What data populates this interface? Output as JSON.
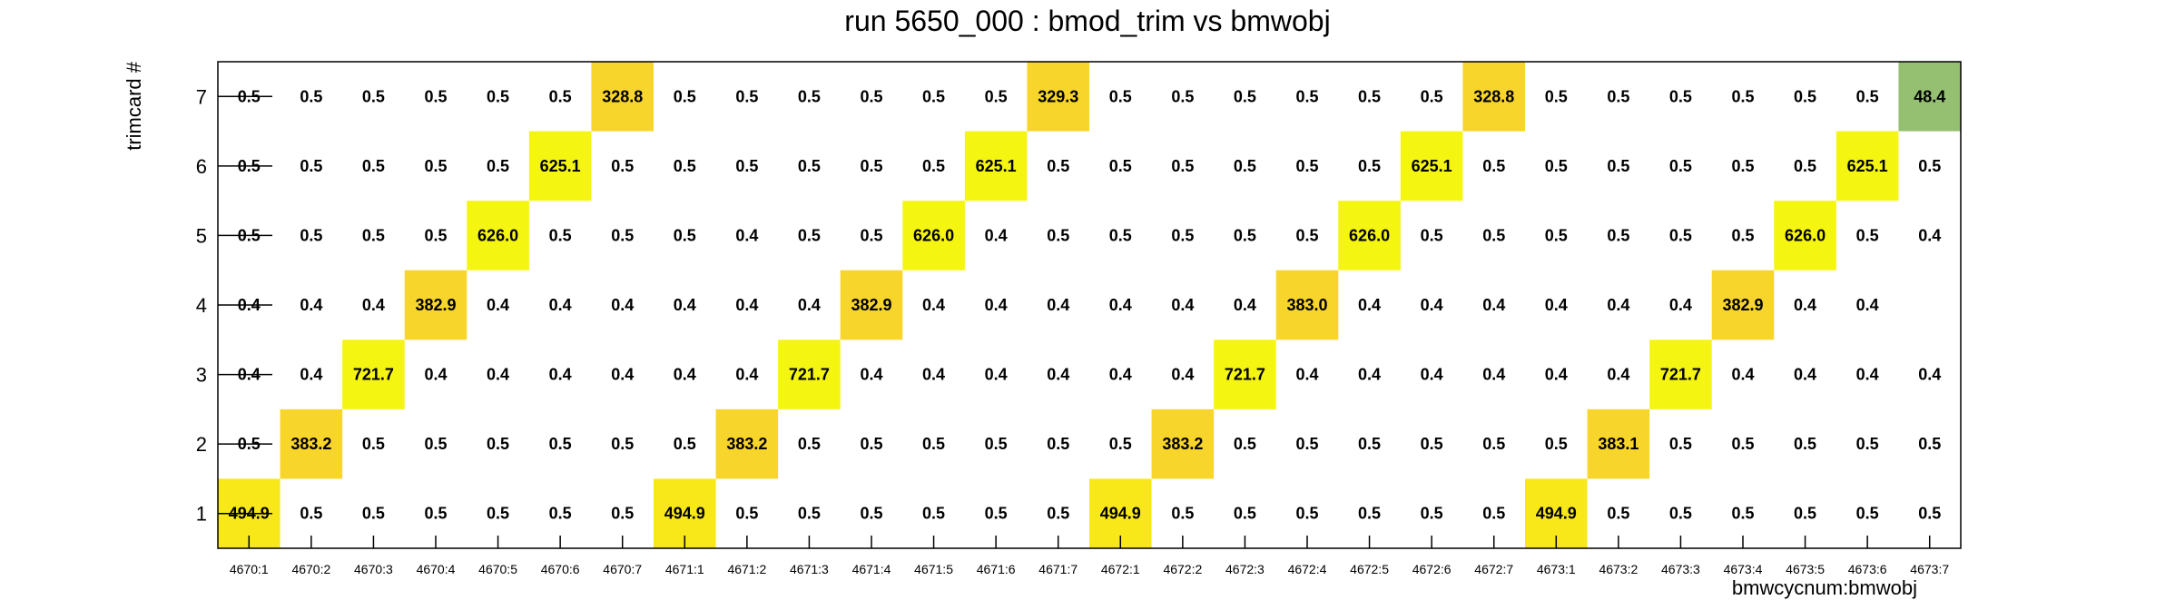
{
  "chart_data": {
    "type": "heatmap",
    "title": "run 5650_000 : bmod_trim vs bmwobj",
    "xlabel": "bmwcycnum:bmwobj",
    "ylabel": "trimcard #",
    "x_categories": [
      "4670:1",
      "4670:2",
      "4670:3",
      "4670:4",
      "4670:5",
      "4670:6",
      "4670:7",
      "4671:1",
      "4671:2",
      "4671:3",
      "4671:4",
      "4671:5",
      "4671:6",
      "4671:7",
      "4672:1",
      "4672:2",
      "4672:3",
      "4672:4",
      "4672:5",
      "4672:6",
      "4672:7",
      "4673:1",
      "4673:2",
      "4673:3",
      "4673:4",
      "4673:5",
      "4673:6",
      "4673:7"
    ],
    "y_categories": [
      "1",
      "2",
      "3",
      "4",
      "5",
      "6",
      "7"
    ],
    "grid": false,
    "cell_text_format": "one decimal",
    "colors": {
      "high": "#f5f512",
      "mid_high": "#f8e81a",
      "mid": "#f8d52a",
      "low": "#96c071",
      "frame": "#000000"
    },
    "cells": [
      {
        "x": "4670:1",
        "y": "7",
        "v": 0.5
      },
      {
        "x": "4670:2",
        "y": "7",
        "v": 0.5
      },
      {
        "x": "4670:3",
        "y": "7",
        "v": 0.5
      },
      {
        "x": "4670:4",
        "y": "7",
        "v": 0.5
      },
      {
        "x": "4670:5",
        "y": "7",
        "v": 0.5
      },
      {
        "x": "4670:6",
        "y": "7",
        "v": 0.5
      },
      {
        "x": "4670:7",
        "y": "7",
        "v": 328.8
      },
      {
        "x": "4671:1",
        "y": "7",
        "v": 0.5
      },
      {
        "x": "4671:2",
        "y": "7",
        "v": 0.5
      },
      {
        "x": "4671:3",
        "y": "7",
        "v": 0.5
      },
      {
        "x": "4671:4",
        "y": "7",
        "v": 0.5
      },
      {
        "x": "4671:5",
        "y": "7",
        "v": 0.5
      },
      {
        "x": "4671:6",
        "y": "7",
        "v": 0.5
      },
      {
        "x": "4671:7",
        "y": "7",
        "v": 329.3
      },
      {
        "x": "4672:1",
        "y": "7",
        "v": 0.5
      },
      {
        "x": "4672:2",
        "y": "7",
        "v": 0.5
      },
      {
        "x": "4672:3",
        "y": "7",
        "v": 0.5
      },
      {
        "x": "4672:4",
        "y": "7",
        "v": 0.5
      },
      {
        "x": "4672:5",
        "y": "7",
        "v": 0.5
      },
      {
        "x": "4672:6",
        "y": "7",
        "v": 0.5
      },
      {
        "x": "4672:7",
        "y": "7",
        "v": 328.8
      },
      {
        "x": "4673:1",
        "y": "7",
        "v": 0.5
      },
      {
        "x": "4673:2",
        "y": "7",
        "v": 0.5
      },
      {
        "x": "4673:3",
        "y": "7",
        "v": 0.5
      },
      {
        "x": "4673:4",
        "y": "7",
        "v": 0.5
      },
      {
        "x": "4673:5",
        "y": "7",
        "v": 0.5
      },
      {
        "x": "4673:6",
        "y": "7",
        "v": 0.5
      },
      {
        "x": "4673:7",
        "y": "7",
        "v": 48.4
      },
      {
        "x": "4670:1",
        "y": "6",
        "v": 0.5
      },
      {
        "x": "4670:2",
        "y": "6",
        "v": 0.5
      },
      {
        "x": "4670:3",
        "y": "6",
        "v": 0.5
      },
      {
        "x": "4670:4",
        "y": "6",
        "v": 0.5
      },
      {
        "x": "4670:5",
        "y": "6",
        "v": 0.5
      },
      {
        "x": "4670:6",
        "y": "6",
        "v": 625.1
      },
      {
        "x": "4670:7",
        "y": "6",
        "v": 0.5
      },
      {
        "x": "4671:1",
        "y": "6",
        "v": 0.5
      },
      {
        "x": "4671:2",
        "y": "6",
        "v": 0.5
      },
      {
        "x": "4671:3",
        "y": "6",
        "v": 0.5
      },
      {
        "x": "4671:4",
        "y": "6",
        "v": 0.5
      },
      {
        "x": "4671:5",
        "y": "6",
        "v": 0.5
      },
      {
        "x": "4671:6",
        "y": "6",
        "v": 625.1
      },
      {
        "x": "4671:7",
        "y": "6",
        "v": 0.5
      },
      {
        "x": "4672:1",
        "y": "6",
        "v": 0.5
      },
      {
        "x": "4672:2",
        "y": "6",
        "v": 0.5
      },
      {
        "x": "4672:3",
        "y": "6",
        "v": 0.5
      },
      {
        "x": "4672:4",
        "y": "6",
        "v": 0.5
      },
      {
        "x": "4672:5",
        "y": "6",
        "v": 0.5
      },
      {
        "x": "4672:6",
        "y": "6",
        "v": 625.1
      },
      {
        "x": "4672:7",
        "y": "6",
        "v": 0.5
      },
      {
        "x": "4673:1",
        "y": "6",
        "v": 0.5
      },
      {
        "x": "4673:2",
        "y": "6",
        "v": 0.5
      },
      {
        "x": "4673:3",
        "y": "6",
        "v": 0.5
      },
      {
        "x": "4673:4",
        "y": "6",
        "v": 0.5
      },
      {
        "x": "4673:5",
        "y": "6",
        "v": 0.5
      },
      {
        "x": "4673:6",
        "y": "6",
        "v": 625.1
      },
      {
        "x": "4673:7",
        "y": "6",
        "v": 0.5
      },
      {
        "x": "4670:1",
        "y": "5",
        "v": 0.5
      },
      {
        "x": "4670:2",
        "y": "5",
        "v": 0.5
      },
      {
        "x": "4670:3",
        "y": "5",
        "v": 0.5
      },
      {
        "x": "4670:4",
        "y": "5",
        "v": 0.5
      },
      {
        "x": "4670:5",
        "y": "5",
        "v": 626.0
      },
      {
        "x": "4670:6",
        "y": "5",
        "v": 0.5
      },
      {
        "x": "4670:7",
        "y": "5",
        "v": 0.5
      },
      {
        "x": "4671:1",
        "y": "5",
        "v": 0.5
      },
      {
        "x": "4671:2",
        "y": "5",
        "v": 0.4
      },
      {
        "x": "4671:3",
        "y": "5",
        "v": 0.5
      },
      {
        "x": "4671:4",
        "y": "5",
        "v": 0.5
      },
      {
        "x": "4671:5",
        "y": "5",
        "v": 626.0
      },
      {
        "x": "4671:6",
        "y": "5",
        "v": 0.4
      },
      {
        "x": "4671:7",
        "y": "5",
        "v": 0.5
      },
      {
        "x": "4672:1",
        "y": "5",
        "v": 0.5
      },
      {
        "x": "4672:2",
        "y": "5",
        "v": 0.5
      },
      {
        "x": "4672:3",
        "y": "5",
        "v": 0.5
      },
      {
        "x": "4672:4",
        "y": "5",
        "v": 0.5
      },
      {
        "x": "4672:5",
        "y": "5",
        "v": 626.0
      },
      {
        "x": "4672:6",
        "y": "5",
        "v": 0.5
      },
      {
        "x": "4672:7",
        "y": "5",
        "v": 0.5
      },
      {
        "x": "4673:1",
        "y": "5",
        "v": 0.5
      },
      {
        "x": "4673:2",
        "y": "5",
        "v": 0.5
      },
      {
        "x": "4673:3",
        "y": "5",
        "v": 0.5
      },
      {
        "x": "4673:4",
        "y": "5",
        "v": 0.5
      },
      {
        "x": "4673:5",
        "y": "5",
        "v": 626.0
      },
      {
        "x": "4673:6",
        "y": "5",
        "v": 0.5
      },
      {
        "x": "4673:7",
        "y": "5",
        "v": 0.4
      },
      {
        "x": "4670:1",
        "y": "4",
        "v": 0.4
      },
      {
        "x": "4670:2",
        "y": "4",
        "v": 0.4
      },
      {
        "x": "4670:3",
        "y": "4",
        "v": 0.4
      },
      {
        "x": "4670:4",
        "y": "4",
        "v": 382.9
      },
      {
        "x": "4670:5",
        "y": "4",
        "v": 0.4
      },
      {
        "x": "4670:6",
        "y": "4",
        "v": 0.4
      },
      {
        "x": "4670:7",
        "y": "4",
        "v": 0.4
      },
      {
        "x": "4671:1",
        "y": "4",
        "v": 0.4
      },
      {
        "x": "4671:2",
        "y": "4",
        "v": 0.4
      },
      {
        "x": "4671:3",
        "y": "4",
        "v": 0.4
      },
      {
        "x": "4671:4",
        "y": "4",
        "v": 382.9
      },
      {
        "x": "4671:5",
        "y": "4",
        "v": 0.4
      },
      {
        "x": "4671:6",
        "y": "4",
        "v": 0.4
      },
      {
        "x": "4671:7",
        "y": "4",
        "v": 0.4
      },
      {
        "x": "4672:1",
        "y": "4",
        "v": 0.4
      },
      {
        "x": "4672:2",
        "y": "4",
        "v": 0.4
      },
      {
        "x": "4672:3",
        "y": "4",
        "v": 0.4
      },
      {
        "x": "4672:4",
        "y": "4",
        "v": 383.0
      },
      {
        "x": "4672:5",
        "y": "4",
        "v": 0.4
      },
      {
        "x": "4672:6",
        "y": "4",
        "v": 0.4
      },
      {
        "x": "4672:7",
        "y": "4",
        "v": 0.4
      },
      {
        "x": "4673:1",
        "y": "4",
        "v": 0.4
      },
      {
        "x": "4673:2",
        "y": "4",
        "v": 0.4
      },
      {
        "x": "4673:3",
        "y": "4",
        "v": 0.4
      },
      {
        "x": "4673:4",
        "y": "4",
        "v": 382.9
      },
      {
        "x": "4673:5",
        "y": "4",
        "v": 0.4
      },
      {
        "x": "4673:6",
        "y": "4",
        "v": 0.4
      },
      {
        "x": "4670:1",
        "y": "3",
        "v": 0.4
      },
      {
        "x": "4670:2",
        "y": "3",
        "v": 0.4
      },
      {
        "x": "4670:3",
        "y": "3",
        "v": 721.7
      },
      {
        "x": "4670:4",
        "y": "3",
        "v": 0.4
      },
      {
        "x": "4670:5",
        "y": "3",
        "v": 0.4
      },
      {
        "x": "4670:6",
        "y": "3",
        "v": 0.4
      },
      {
        "x": "4670:7",
        "y": "3",
        "v": 0.4
      },
      {
        "x": "4671:1",
        "y": "3",
        "v": 0.4
      },
      {
        "x": "4671:2",
        "y": "3",
        "v": 0.4
      },
      {
        "x": "4671:3",
        "y": "3",
        "v": 721.7
      },
      {
        "x": "4671:4",
        "y": "3",
        "v": 0.4
      },
      {
        "x": "4671:5",
        "y": "3",
        "v": 0.4
      },
      {
        "x": "4671:6",
        "y": "3",
        "v": 0.4
      },
      {
        "x": "4671:7",
        "y": "3",
        "v": 0.4
      },
      {
        "x": "4672:1",
        "y": "3",
        "v": 0.4
      },
      {
        "x": "4672:2",
        "y": "3",
        "v": 0.4
      },
      {
        "x": "4672:3",
        "y": "3",
        "v": 721.7
      },
      {
        "x": "4672:4",
        "y": "3",
        "v": 0.4
      },
      {
        "x": "4672:5",
        "y": "3",
        "v": 0.4
      },
      {
        "x": "4672:6",
        "y": "3",
        "v": 0.4
      },
      {
        "x": "4672:7",
        "y": "3",
        "v": 0.4
      },
      {
        "x": "4673:1",
        "y": "3",
        "v": 0.4
      },
      {
        "x": "4673:2",
        "y": "3",
        "v": 0.4
      },
      {
        "x": "4673:3",
        "y": "3",
        "v": 721.7
      },
      {
        "x": "4673:4",
        "y": "3",
        "v": 0.4
      },
      {
        "x": "4673:5",
        "y": "3",
        "v": 0.4
      },
      {
        "x": "4673:6",
        "y": "3",
        "v": 0.4
      },
      {
        "x": "4673:7",
        "y": "3",
        "v": 0.4
      },
      {
        "x": "4670:1",
        "y": "2",
        "v": 0.5
      },
      {
        "x": "4670:2",
        "y": "2",
        "v": 383.2
      },
      {
        "x": "4670:3",
        "y": "2",
        "v": 0.5
      },
      {
        "x": "4670:4",
        "y": "2",
        "v": 0.5
      },
      {
        "x": "4670:5",
        "y": "2",
        "v": 0.5
      },
      {
        "x": "4670:6",
        "y": "2",
        "v": 0.5
      },
      {
        "x": "4670:7",
        "y": "2",
        "v": 0.5
      },
      {
        "x": "4671:1",
        "y": "2",
        "v": 0.5
      },
      {
        "x": "4671:2",
        "y": "2",
        "v": 383.2
      },
      {
        "x": "4671:3",
        "y": "2",
        "v": 0.5
      },
      {
        "x": "4671:4",
        "y": "2",
        "v": 0.5
      },
      {
        "x": "4671:5",
        "y": "2",
        "v": 0.5
      },
      {
        "x": "4671:6",
        "y": "2",
        "v": 0.5
      },
      {
        "x": "4671:7",
        "y": "2",
        "v": 0.5
      },
      {
        "x": "4672:1",
        "y": "2",
        "v": 0.5
      },
      {
        "x": "4672:2",
        "y": "2",
        "v": 383.2
      },
      {
        "x": "4672:3",
        "y": "2",
        "v": 0.5
      },
      {
        "x": "4672:4",
        "y": "2",
        "v": 0.5
      },
      {
        "x": "4672:5",
        "y": "2",
        "v": 0.5
      },
      {
        "x": "4672:6",
        "y": "2",
        "v": 0.5
      },
      {
        "x": "4672:7",
        "y": "2",
        "v": 0.5
      },
      {
        "x": "4673:1",
        "y": "2",
        "v": 0.5
      },
      {
        "x": "4673:2",
        "y": "2",
        "v": 383.1
      },
      {
        "x": "4673:3",
        "y": "2",
        "v": 0.5
      },
      {
        "x": "4673:4",
        "y": "2",
        "v": 0.5
      },
      {
        "x": "4673:5",
        "y": "2",
        "v": 0.5
      },
      {
        "x": "4673:6",
        "y": "2",
        "v": 0.5
      },
      {
        "x": "4673:7",
        "y": "2",
        "v": 0.5
      },
      {
        "x": "4670:1",
        "y": "1",
        "v": 494.9
      },
      {
        "x": "4670:2",
        "y": "1",
        "v": 0.5
      },
      {
        "x": "4670:3",
        "y": "1",
        "v": 0.5
      },
      {
        "x": "4670:4",
        "y": "1",
        "v": 0.5
      },
      {
        "x": "4670:5",
        "y": "1",
        "v": 0.5
      },
      {
        "x": "4670:6",
        "y": "1",
        "v": 0.5
      },
      {
        "x": "4670:7",
        "y": "1",
        "v": 0.5
      },
      {
        "x": "4671:1",
        "y": "1",
        "v": 494.9
      },
      {
        "x": "4671:2",
        "y": "1",
        "v": 0.5
      },
      {
        "x": "4671:3",
        "y": "1",
        "v": 0.5
      },
      {
        "x": "4671:4",
        "y": "1",
        "v": 0.5
      },
      {
        "x": "4671:5",
        "y": "1",
        "v": 0.5
      },
      {
        "x": "4671:6",
        "y": "1",
        "v": 0.5
      },
      {
        "x": "4671:7",
        "y": "1",
        "v": 0.5
      },
      {
        "x": "4672:1",
        "y": "1",
        "v": 494.9
      },
      {
        "x": "4672:2",
        "y": "1",
        "v": 0.5
      },
      {
        "x": "4672:3",
        "y": "1",
        "v": 0.5
      },
      {
        "x": "4672:4",
        "y": "1",
        "v": 0.5
      },
      {
        "x": "4672:5",
        "y": "1",
        "v": 0.5
      },
      {
        "x": "4672:6",
        "y": "1",
        "v": 0.5
      },
      {
        "x": "4672:7",
        "y": "1",
        "v": 0.5
      },
      {
        "x": "4673:1",
        "y": "1",
        "v": 494.9
      },
      {
        "x": "4673:2",
        "y": "1",
        "v": 0.5
      },
      {
        "x": "4673:3",
        "y": "1",
        "v": 0.5
      },
      {
        "x": "4673:4",
        "y": "1",
        "v": 0.5
      },
      {
        "x": "4673:5",
        "y": "1",
        "v": 0.5
      },
      {
        "x": "4673:6",
        "y": "1",
        "v": 0.5
      },
      {
        "x": "4673:7",
        "y": "1",
        "v": 0.5
      }
    ]
  }
}
